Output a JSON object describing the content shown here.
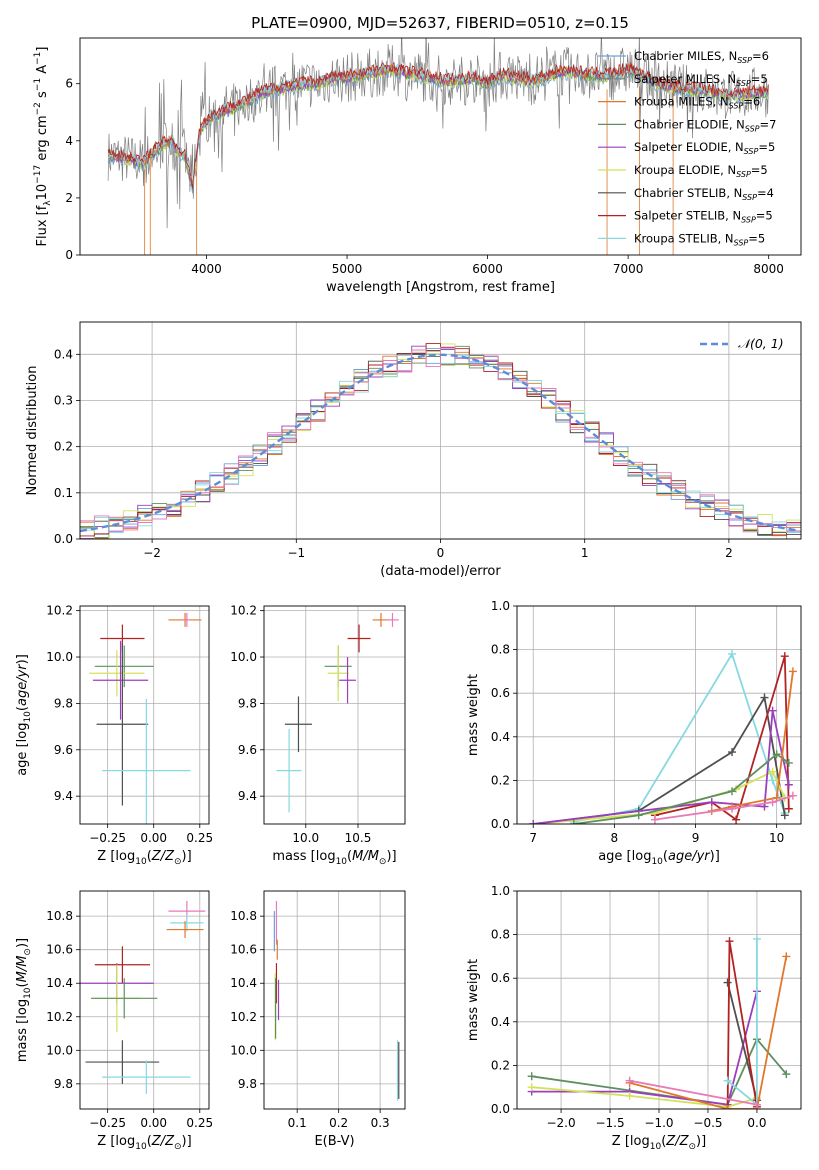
{
  "figure_title": "PLATE=0900, MJD=52637, FIBERID=0510, z=0.15",
  "series_colors": {
    "chabrier_miles": "#6f9fd8",
    "salpeter_miles": "#7f7f7f",
    "kroupa_miles": "#e0772a",
    "chabrier_elodie": "#5f8f5f",
    "salpeter_elodie": "#9b3fbf",
    "kroupa_elodie": "#d4e15a",
    "chabrier_stelib": "#4f4f4f",
    "salpeter_stelib": "#b22222",
    "kroupa_stelib": "#86d9e0",
    "pink": "#e87ab8",
    "normal_fit": "#5b8ed6"
  },
  "chart_data": [
    {
      "type": "line",
      "id": "spectrum",
      "xlabel": "wavelength [Angstrom, rest frame]",
      "ylabel": "Flux [f_λ10^-17 erg cm^-2 s^-1 A^-1]",
      "xlim": [
        3100,
        8230
      ],
      "ylim": [
        0,
        7.6
      ],
      "xticks": [
        "4000",
        "5000",
        "6000",
        "7000",
        "8000"
      ],
      "yticks": [
        "0",
        "2",
        "4",
        "6"
      ],
      "legend_position": "upper-right",
      "legend": [
        {
          "label": "Chabrier MILES, N_SSP=6",
          "color": "#6f9fd8"
        },
        {
          "label": "Salpeter MILES, N_SSP=5",
          "color": "#7f7f7f"
        },
        {
          "label": "Kroupa MILES, N_SSP=6",
          "color": "#e0772a"
        },
        {
          "label": "Chabrier ELODIE, N_SSP=7",
          "color": "#5f8f5f"
        },
        {
          "label": "Salpeter ELODIE, N_SSP=5",
          "color": "#9b3fbf"
        },
        {
          "label": "Kroupa ELODIE, N_SSP=5",
          "color": "#d4e15a"
        },
        {
          "label": "Chabrier STELIB, N_SSP=4",
          "color": "#4f4f4f"
        },
        {
          "label": "Salpeter STELIB, N_SSP=5",
          "color": "#b22222"
        },
        {
          "label": "Kroupa STELIB, N_SSP=5",
          "color": "#86d9e0"
        }
      ],
      "series": [
        {
          "name": "data",
          "color": "#7f7f7f",
          "x": [
            3300,
            3400,
            3500,
            3550,
            3600,
            3650,
            3700,
            3750,
            3800,
            3850,
            3900,
            3950,
            4000,
            4100,
            4200,
            4300,
            4400,
            4500,
            4600,
            4700,
            4800,
            4900,
            5000,
            5100,
            5200,
            5300,
            5400,
            5500,
            5600,
            5700,
            5800,
            5900,
            6000,
            6100,
            6200,
            6300,
            6400,
            6500,
            6600,
            6700,
            6800,
            6900,
            7000,
            7100,
            7200,
            7300,
            7400,
            7500,
            7600,
            7700,
            7800,
            7900,
            8000
          ],
          "y": [
            3.5,
            3.4,
            3.3,
            3.2,
            3.5,
            3.7,
            3.9,
            4.0,
            3.6,
            3.4,
            2.4,
            4.3,
            4.7,
            5.0,
            5.2,
            5.4,
            5.7,
            5.8,
            5.9,
            6.0,
            6.0,
            6.2,
            6.2,
            6.3,
            6.4,
            6.5,
            6.4,
            6.3,
            6.2,
            6.1,
            6.1,
            6.2,
            6.0,
            6.3,
            6.2,
            6.1,
            6.2,
            6.4,
            6.4,
            6.3,
            6.3,
            6.3,
            6.5,
            6.3,
            6.0,
            5.9,
            5.8,
            5.8,
            5.7,
            5.6,
            5.6,
            5.7,
            5.7
          ]
        },
        {
          "name": "model",
          "color": "#b22222",
          "x": [
            3300,
            3400,
            3500,
            3550,
            3600,
            3650,
            3700,
            3750,
            3800,
            3850,
            3900,
            3950,
            4000,
            4100,
            4200,
            4300,
            4400,
            4500,
            4600,
            4700,
            4800,
            4900,
            5000,
            5100,
            5200,
            5300,
            5400,
            5500,
            5600,
            5700,
            5800,
            5900,
            6000,
            6100,
            6200,
            6300,
            6400,
            6500,
            6600,
            6700,
            6800,
            6900,
            7000,
            7100,
            7200,
            7300,
            7400,
            7500,
            7600,
            7700,
            7800,
            7900,
            8000
          ],
          "y": [
            3.6,
            3.5,
            3.3,
            3.3,
            3.4,
            3.6,
            3.8,
            3.9,
            3.5,
            3.3,
            2.6,
            4.2,
            4.6,
            4.9,
            5.1,
            5.3,
            5.5,
            5.6,
            5.7,
            5.8,
            5.8,
            5.9,
            6.0,
            6.0,
            6.1,
            6.1,
            6.1,
            6.0,
            6.0,
            6.0,
            6.0,
            6.0,
            5.9,
            6.0,
            6.0,
            6.0,
            6.0,
            6.1,
            6.1,
            6.1,
            6.0,
            6.0,
            6.1,
            6.0,
            5.9,
            5.8,
            5.8,
            5.8,
            5.7,
            5.7,
            5.7,
            5.7,
            5.8
          ]
        }
      ]
    },
    {
      "type": "line",
      "id": "residual-histogram",
      "xlabel": "(data-model)/error",
      "ylabel": "Normed distribution",
      "xlim": [
        -2.5,
        2.5
      ],
      "ylim": [
        0,
        0.47
      ],
      "xticks": [
        "−2",
        "−1",
        "0",
        "1",
        "2"
      ],
      "yticks": [
        "0.0",
        "0.1",
        "0.2",
        "0.3",
        "0.4"
      ],
      "legend_position": "upper-right",
      "legend": [
        {
          "label": "𝒩(0, 1)",
          "color": "#5b8ed6"
        }
      ],
      "series": [
        {
          "name": "𝒩(0, 1)",
          "color": "#5b8ed6",
          "function": "normal",
          "mean": 0,
          "sigma": 1
        }
      ]
    },
    {
      "type": "scatter",
      "id": "age-vs-Z",
      "xlabel": "Z [log10(Z/Z⊙)]",
      "ylabel": "age [log10(age/yr)]",
      "xlim": [
        -0.4,
        0.3
      ],
      "ylim": [
        9.28,
        10.22
      ],
      "xticks": [
        "−0.25",
        "0.00",
        "0.25"
      ],
      "yticks": [
        "9.4",
        "9.6",
        "9.8",
        "10.0",
        "10.2"
      ],
      "points": [
        {
          "x": 0.17,
          "y": 10.16,
          "xerr": 0.09,
          "yerr": 0.03,
          "color": "#e0772a"
        },
        {
          "x": 0.18,
          "y": 10.16,
          "xerr": 0.02,
          "yerr": 0.03,
          "color": "#e87ab8"
        },
        {
          "x": -0.17,
          "y": 10.08,
          "xerr": 0.12,
          "yerr": 0.06,
          "color": "#b22222"
        },
        {
          "x": -0.16,
          "y": 9.96,
          "xerr": 0.16,
          "yerr": 0.09,
          "color": "#5f8f5f"
        },
        {
          "x": -0.2,
          "y": 9.93,
          "xerr": 0.15,
          "yerr": 0.1,
          "color": "#d4e15a"
        },
        {
          "x": -0.18,
          "y": 9.9,
          "xerr": 0.15,
          "yerr": 0.17,
          "color": "#9b3fbf"
        },
        {
          "x": -0.17,
          "y": 9.71,
          "xerr": 0.14,
          "yerr": 0.35,
          "color": "#4f4f4f"
        },
        {
          "x": -0.04,
          "y": 9.51,
          "xerr": 0.24,
          "yerr": 0.31,
          "color": "#86d9e0"
        }
      ]
    },
    {
      "type": "scatter",
      "id": "age-vs-mass",
      "xlabel": "mass [log10(M/M⊙)]",
      "ylabel": "",
      "xlim": [
        9.6,
        10.95
      ],
      "ylim": [
        9.28,
        10.22
      ],
      "xticks": [
        "10.0",
        "10.5"
      ],
      "yticks": [
        "9.4",
        "9.6",
        "9.8",
        "10.0",
        "10.2"
      ],
      "points": [
        {
          "x": 10.72,
          "y": 10.16,
          "xerr": 0.08,
          "yerr": 0.03,
          "color": "#e0772a"
        },
        {
          "x": 10.83,
          "y": 10.16,
          "xerr": 0.06,
          "yerr": 0.03,
          "color": "#e87ab8"
        },
        {
          "x": 10.51,
          "y": 10.08,
          "xerr": 0.11,
          "yerr": 0.06,
          "color": "#b22222"
        },
        {
          "x": 10.31,
          "y": 9.96,
          "xerr": 0.13,
          "yerr": 0.09,
          "color": "#5f8f5f"
        },
        {
          "x": 10.31,
          "y": 9.93,
          "xerr": 0.1,
          "yerr": 0.12,
          "color": "#d4e15a"
        },
        {
          "x": 10.4,
          "y": 9.9,
          "xerr": 0.08,
          "yerr": 0.1,
          "color": "#9b3fbf"
        },
        {
          "x": 9.93,
          "y": 9.71,
          "xerr": 0.13,
          "yerr": 0.12,
          "color": "#4f4f4f"
        },
        {
          "x": 9.84,
          "y": 9.51,
          "xerr": 0.12,
          "yerr": 0.18,
          "color": "#86d9e0"
        }
      ]
    },
    {
      "type": "line",
      "id": "mass-weight-vs-age",
      "xlabel": "age [log10(age/yr)]",
      "ylabel": "mass weight",
      "xlim": [
        6.8,
        10.3
      ],
      "ylim": [
        0,
        1.0
      ],
      "xticks": [
        "7",
        "8",
        "9",
        "10"
      ],
      "yticks": [
        "0.0",
        "0.2",
        "0.4",
        "0.6",
        "0.8",
        "1.0"
      ],
      "series": [
        {
          "color": "#86d9e0",
          "x": [
            7.5,
            8.3,
            9.45,
            9.95,
            10.1
          ],
          "y": [
            0.01,
            0.07,
            0.78,
            0.2,
            0.05
          ]
        },
        {
          "color": "#4f4f4f",
          "x": [
            7.0,
            8.3,
            9.45,
            9.85,
            10.1
          ],
          "y": [
            0.0,
            0.06,
            0.33,
            0.58,
            0.04
          ]
        },
        {
          "color": "#b22222",
          "x": [
            8.5,
            9.2,
            9.5,
            10.1,
            10.15
          ],
          "y": [
            0.04,
            0.1,
            0.02,
            0.77,
            0.07
          ]
        },
        {
          "color": "#d4e15a",
          "x": [
            7.0,
            8.5,
            9.5,
            9.95,
            10.1
          ],
          "y": [
            0.0,
            0.05,
            0.16,
            0.24,
            0.12
          ]
        },
        {
          "color": "#9b3fbf",
          "x": [
            7.0,
            9.2,
            9.85,
            9.95,
            10.15
          ],
          "y": [
            0.0,
            0.1,
            0.08,
            0.52,
            0.18
          ]
        },
        {
          "color": "#5f8f5f",
          "x": [
            7.5,
            8.3,
            9.45,
            10.0,
            10.15
          ],
          "y": [
            0.0,
            0.04,
            0.15,
            0.32,
            0.28
          ]
        },
        {
          "color": "#e0772a",
          "x": [
            9.2,
            9.45,
            10.0,
            10.2
          ],
          "y": [
            0.06,
            0.08,
            0.12,
            0.7
          ]
        },
        {
          "color": "#e87ab8",
          "x": [
            8.5,
            9.45,
            9.95,
            10.2
          ],
          "y": [
            0.02,
            0.07,
            0.1,
            0.13
          ]
        }
      ]
    },
    {
      "type": "scatter",
      "id": "mass-vs-Z",
      "xlabel": "Z [log10(Z/Z⊙)]",
      "ylabel": "mass [log10(M/M⊙)]",
      "xlim": [
        -0.4,
        0.3
      ],
      "ylim": [
        9.65,
        10.95
      ],
      "xticks": [
        "−0.25",
        "0.00",
        "0.25"
      ],
      "yticks": [
        "9.8",
        "10.0",
        "10.2",
        "10.4",
        "10.6",
        "10.8"
      ],
      "points": [
        {
          "x": 0.18,
          "y": 10.83,
          "xerr": 0.1,
          "yerr": 0.06,
          "color": "#e87ab8"
        },
        {
          "x": 0.18,
          "y": 10.76,
          "xerr": 0.09,
          "yerr": 0.05,
          "color": "#86d9e0"
        },
        {
          "x": 0.17,
          "y": 10.72,
          "xerr": 0.1,
          "yerr": 0.05,
          "color": "#e0772a"
        },
        {
          "x": -0.17,
          "y": 10.51,
          "xerr": 0.15,
          "yerr": 0.11,
          "color": "#b22222"
        },
        {
          "x": -0.2,
          "y": 10.4,
          "xerr": 0.2,
          "yerr": 0.12,
          "color": "#9b3fbf"
        },
        {
          "x": -0.2,
          "y": 10.31,
          "xerr": 0.13,
          "yerr": 0.2,
          "color": "#d4e15a"
        },
        {
          "x": -0.16,
          "y": 10.31,
          "xerr": 0.18,
          "yerr": 0.12,
          "color": "#5f8f5f"
        },
        {
          "x": -0.17,
          "y": 9.93,
          "xerr": 0.2,
          "yerr": 0.13,
          "color": "#4f4f4f"
        },
        {
          "x": -0.04,
          "y": 9.84,
          "xerr": 0.24,
          "yerr": 0.1,
          "color": "#86d9e0"
        }
      ]
    },
    {
      "type": "scatter",
      "id": "mass-vs-ebv",
      "xlabel": "E(B-V)",
      "ylabel": "",
      "xlim": [
        0.02,
        0.36
      ],
      "ylim": [
        9.65,
        10.95
      ],
      "xticks": [
        "0.1",
        "0.2",
        "0.3"
      ],
      "yticks": [
        "9.8",
        "10.0",
        "10.2",
        "10.4",
        "10.6",
        "10.8"
      ],
      "points": [
        {
          "x": 0.045,
          "y": 10.71,
          "yerr": 0.12,
          "color": "#6f9fd8"
        },
        {
          "x": 0.05,
          "y": 10.76,
          "yerr": 0.13,
          "color": "#e87ab8"
        },
        {
          "x": 0.052,
          "y": 10.6,
          "yerr": 0.06,
          "color": "#e0772a"
        },
        {
          "x": 0.05,
          "y": 10.4,
          "yerr": 0.12,
          "color": "#b22222"
        },
        {
          "x": 0.055,
          "y": 10.3,
          "yerr": 0.12,
          "color": "#9b3fbf"
        },
        {
          "x": 0.047,
          "y": 10.26,
          "yerr": 0.2,
          "color": "#d4e15a"
        },
        {
          "x": 0.048,
          "y": 10.25,
          "yerr": 0.18,
          "color": "#5f8f5f"
        },
        {
          "x": 0.342,
          "y": 9.88,
          "yerr": 0.18,
          "color": "#86d9e0"
        },
        {
          "x": 0.345,
          "y": 9.88,
          "yerr": 0.17,
          "color": "#4f4f4f"
        }
      ]
    },
    {
      "type": "line",
      "id": "mass-weight-vs-Z",
      "xlabel": "Z [log10(Z/Z⊙)]",
      "ylabel": "mass weight",
      "xlim": [
        -2.45,
        0.45
      ],
      "ylim": [
        0,
        1.0
      ],
      "xticks": [
        "−2.0",
        "−1.5",
        "−1.0",
        "−0.5",
        "0.0"
      ],
      "yticks": [
        "0.0",
        "0.2",
        "0.4",
        "0.6",
        "0.8",
        "1.0"
      ],
      "series": [
        {
          "color": "#5f8f5f",
          "x": [
            -2.3,
            -0.3,
            0.0,
            0.3
          ],
          "y": [
            0.15,
            0.02,
            0.32,
            0.16
          ]
        },
        {
          "color": "#9b3fbf",
          "x": [
            -2.3,
            -1.3,
            -0.3,
            0.0
          ],
          "y": [
            0.08,
            0.08,
            0.02,
            0.54
          ]
        },
        {
          "color": "#d4e15a",
          "x": [
            -2.3,
            -1.3,
            -0.3,
            0.0
          ],
          "y": [
            0.1,
            0.06,
            0.01,
            0.05
          ]
        },
        {
          "color": "#4f4f4f",
          "x": [
            -0.3,
            0.0
          ],
          "y": [
            0.58,
            0.04
          ]
        },
        {
          "color": "#b22222",
          "x": [
            -0.3,
            -0.28,
            0.0
          ],
          "y": [
            0.0,
            0.77,
            0.01
          ]
        },
        {
          "color": "#86d9e0",
          "x": [
            -0.3,
            0.0,
            0.0
          ],
          "y": [
            0.13,
            0.02,
            0.78
          ]
        },
        {
          "color": "#e0772a",
          "x": [
            -1.3,
            -0.3,
            0.0,
            0.3
          ],
          "y": [
            0.12,
            0.0,
            0.0,
            0.7
          ]
        },
        {
          "color": "#e87ab8",
          "x": [
            -1.3,
            0.0
          ],
          "y": [
            0.13,
            0.02
          ]
        }
      ]
    }
  ]
}
